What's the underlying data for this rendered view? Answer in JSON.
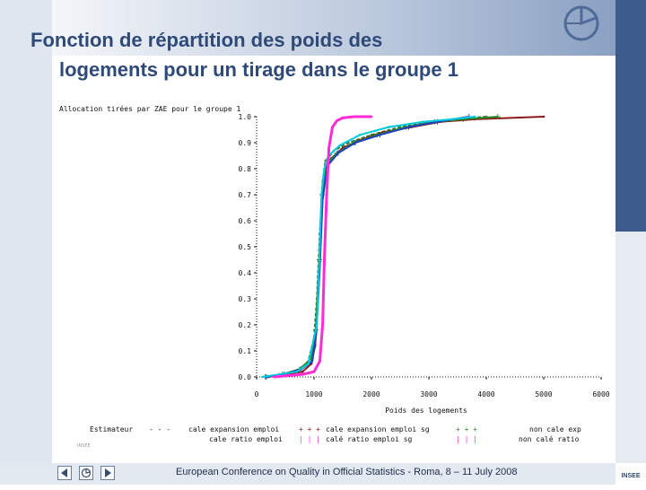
{
  "slide": {
    "title_line1": "Fonction de répartition des poids des",
    "title_line2": "logements pour un tirage dans le groupe 1",
    "footer": "European Conference on Quality in Official Statistics - Roma, 8 – 11 July 2008",
    "small_mark": "INSEE",
    "logo_text": "INSEE"
  },
  "colors": {
    "title": "#2f4a78",
    "estimateur": "#1a1a1a",
    "cale_ratio_emploi": "#8b1a1a",
    "cale_expansion_emploi": "#2e7d32",
    "cale_ratio_emploi_sg": "#1f3fbf",
    "cale_expansion_emploi_sg": "#2a8a2a",
    "non_cale_exp": "#00c8e0",
    "non_cale_ratio": "#ff2bd6"
  },
  "chart_data": {
    "type": "line",
    "title": "Allocation tirées par ZAE pour le groupe 1",
    "xlabel": "Poids des logements",
    "ylabel": "",
    "xlim": [
      0,
      6000
    ],
    "ylim": [
      0,
      1.0
    ],
    "x_ticks": [
      "0",
      "1000",
      "2000",
      "3000",
      "4000",
      "5000",
      "6000"
    ],
    "y_ticks": [
      "0.0",
      "0.1",
      "0.2",
      "0.3",
      "0.4",
      "0.5",
      "0.6",
      "0.7",
      "0.8",
      "0.9",
      "1.0"
    ],
    "legend_label": "Estimateur",
    "legend_placement": "bottom",
    "series": [
      {
        "name": "cale expansion emploi",
        "colorKey": "cale_expansion_emploi",
        "style": "dash",
        "x": [
          180,
          400,
          700,
          900,
          1000,
          1050,
          1100,
          1150,
          1200,
          1350,
          1600,
          2000,
          2500,
          3000,
          3500,
          4000
        ],
        "y": [
          0.0,
          0.01,
          0.02,
          0.06,
          0.15,
          0.3,
          0.55,
          0.75,
          0.83,
          0.87,
          0.9,
          0.93,
          0.96,
          0.98,
          0.99,
          1.0
        ]
      },
      {
        "name": "cale ratio emploi",
        "colorKey": "cale_ratio_emploi",
        "style": "solid",
        "x": [
          200,
          500,
          800,
          950,
          1020,
          1080,
          1120,
          1180,
          1300,
          1500,
          1800,
          2200,
          2700,
          3200,
          3800,
          5000
        ],
        "y": [
          0.0,
          0.01,
          0.02,
          0.05,
          0.12,
          0.35,
          0.6,
          0.78,
          0.84,
          0.88,
          0.91,
          0.94,
          0.96,
          0.98,
          0.99,
          1.0
        ]
      },
      {
        "name": "cale expansion emploi sg",
        "colorKey": "cale_expansion_emploi_sg",
        "style": "plus",
        "x": [
          150,
          450,
          750,
          950,
          1030,
          1090,
          1140,
          1220,
          1400,
          1700,
          2100,
          2600,
          3100,
          3600,
          4200
        ],
        "y": [
          0.0,
          0.01,
          0.03,
          0.07,
          0.18,
          0.45,
          0.7,
          0.82,
          0.86,
          0.9,
          0.93,
          0.96,
          0.98,
          0.99,
          1.0
        ]
      },
      {
        "name": "cale ratio emploi sg",
        "colorKey": "cale_ratio_emploi_sg",
        "style": "bar",
        "x": [
          170,
          480,
          780,
          970,
          1040,
          1100,
          1150,
          1230,
          1420,
          1720,
          2150,
          2650,
          3150,
          3700
        ],
        "y": [
          0.0,
          0.01,
          0.03,
          0.06,
          0.17,
          0.42,
          0.68,
          0.81,
          0.86,
          0.9,
          0.93,
          0.96,
          0.98,
          1.0
        ]
      },
      {
        "name": "non cale exp",
        "colorKey": "non_cale_exp",
        "style": "solid",
        "x": [
          100,
          400,
          700,
          900,
          1050,
          1100,
          1130,
          1180,
          1250,
          1450,
          1800,
          2300,
          2900,
          3400,
          3800
        ],
        "y": [
          0.0,
          0.01,
          0.02,
          0.05,
          0.2,
          0.5,
          0.7,
          0.8,
          0.85,
          0.89,
          0.93,
          0.96,
          0.98,
          0.99,
          1.0
        ]
      },
      {
        "name": "non calé ratio",
        "colorKey": "non_cale_ratio",
        "style": "solid",
        "x": [
          300,
          800,
          1000,
          1100,
          1150,
          1180,
          1220,
          1260,
          1320,
          1400,
          1500,
          1700,
          2000
        ],
        "y": [
          0.0,
          0.01,
          0.02,
          0.06,
          0.2,
          0.45,
          0.7,
          0.88,
          0.96,
          0.985,
          0.995,
          1.0,
          1.0
        ]
      }
    ],
    "legend_items": [
      {
        "label": "cale expansion emploi",
        "symbol": "- - -",
        "colorKey": "estimateur"
      },
      {
        "label": "cale ratio emploi",
        "symbol": "",
        "colorKey": "estimateur"
      },
      {
        "label": "cale expansion emploi sg",
        "symbol": "+ + +",
        "colorKey": "cale_ratio_emploi"
      },
      {
        "label": "calé ratio emploi sg",
        "symbol": "| | |",
        "colorKey": "non_cale_ratio"
      },
      {
        "label": "non cale exp",
        "symbol": "+ + +",
        "colorKey": "cale_expansion_emploi"
      },
      {
        "label": "non calé ratio",
        "symbol": "| | |",
        "colorKey": "non_cale_ratio"
      }
    ]
  }
}
